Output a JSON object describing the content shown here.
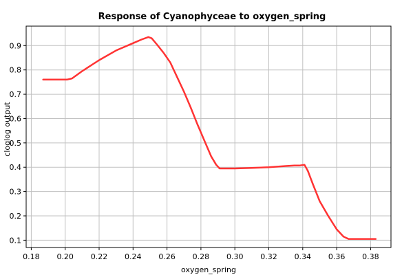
{
  "chart_data": {
    "type": "line",
    "title": "Response of Cyanophyceae to oxygen_spring",
    "xlabel": "oxygen_spring",
    "ylabel": "cloglog output",
    "xlim": [
      0.177,
      0.392
    ],
    "ylim": [
      0.07,
      0.98
    ],
    "xticks": [
      "0.18",
      "0.20",
      "0.22",
      "0.24",
      "0.26",
      "0.28",
      "0.30",
      "0.32",
      "0.34",
      "0.36",
      "0.38"
    ],
    "yticks": [
      "0.1",
      "0.2",
      "0.3",
      "0.4",
      "0.5",
      "0.6",
      "0.7",
      "0.8",
      "0.9"
    ],
    "grid": true,
    "series": [
      {
        "color": "#ff3333",
        "x": [
          0.187,
          0.195,
          0.201,
          0.204,
          0.21,
          0.22,
          0.23,
          0.24,
          0.245,
          0.249,
          0.251,
          0.254,
          0.258,
          0.262,
          0.266,
          0.27,
          0.274,
          0.278,
          0.282,
          0.286,
          0.289,
          0.291,
          0.295,
          0.3,
          0.31,
          0.32,
          0.33,
          0.335,
          0.338,
          0.341,
          0.343,
          0.346,
          0.35,
          0.355,
          0.36,
          0.364,
          0.367,
          0.37,
          0.375,
          0.38,
          0.383
        ],
        "y": [
          0.76,
          0.76,
          0.76,
          0.765,
          0.795,
          0.84,
          0.88,
          0.91,
          0.925,
          0.935,
          0.93,
          0.905,
          0.87,
          0.83,
          0.77,
          0.71,
          0.645,
          0.575,
          0.51,
          0.445,
          0.41,
          0.395,
          0.395,
          0.395,
          0.397,
          0.4,
          0.405,
          0.407,
          0.407,
          0.41,
          0.385,
          0.33,
          0.26,
          0.2,
          0.145,
          0.115,
          0.105,
          0.105,
          0.105,
          0.105,
          0.105
        ]
      }
    ]
  }
}
